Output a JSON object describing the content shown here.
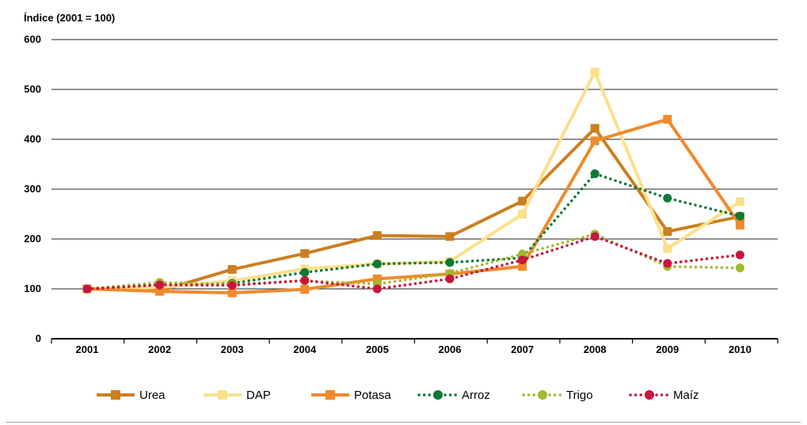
{
  "chart_data": {
    "type": "line",
    "ylabel": "Índice (2001 = 100)",
    "xlabel": "",
    "ylim": [
      0,
      600
    ],
    "yticks": [
      0,
      100,
      200,
      300,
      400,
      500,
      600
    ],
    "categories": [
      "2001",
      "2002",
      "2003",
      "2004",
      "2005",
      "2006",
      "2007",
      "2008",
      "2009",
      "2010"
    ],
    "grid": true,
    "legend_position": "bottom",
    "series": [
      {
        "name": "Urea",
        "color": "#cc7f20",
        "style": "solid",
        "marker": "square",
        "values": [
          100,
          96,
          139,
          171,
          207,
          205,
          276,
          422,
          215,
          245
        ]
      },
      {
        "name": "DAP",
        "color": "#fbe08a",
        "style": "solid",
        "marker": "square",
        "values": [
          100,
          103,
          116,
          140,
          150,
          155,
          250,
          535,
          181,
          275
        ]
      },
      {
        "name": "Potasa",
        "color": "#f08a2c",
        "style": "solid",
        "marker": "square",
        "values": [
          100,
          95,
          92,
          99,
          120,
          130,
          145,
          397,
          440,
          228
        ]
      },
      {
        "name": "Arroz",
        "color": "#0e7a38",
        "style": "dotted",
        "marker": "circle",
        "values": [
          100,
          108,
          111,
          133,
          150,
          153,
          162,
          331,
          282,
          246
        ]
      },
      {
        "name": "Trigo",
        "color": "#a3b92e",
        "style": "dotted",
        "marker": "circle",
        "values": [
          100,
          113,
          109,
          116,
          110,
          131,
          170,
          210,
          145,
          142
        ]
      },
      {
        "name": "Maíz",
        "color": "#c8163d",
        "style": "dotted",
        "marker": "circle",
        "values": [
          100,
          108,
          107,
          117,
          100,
          120,
          158,
          205,
          151,
          168
        ]
      }
    ]
  }
}
